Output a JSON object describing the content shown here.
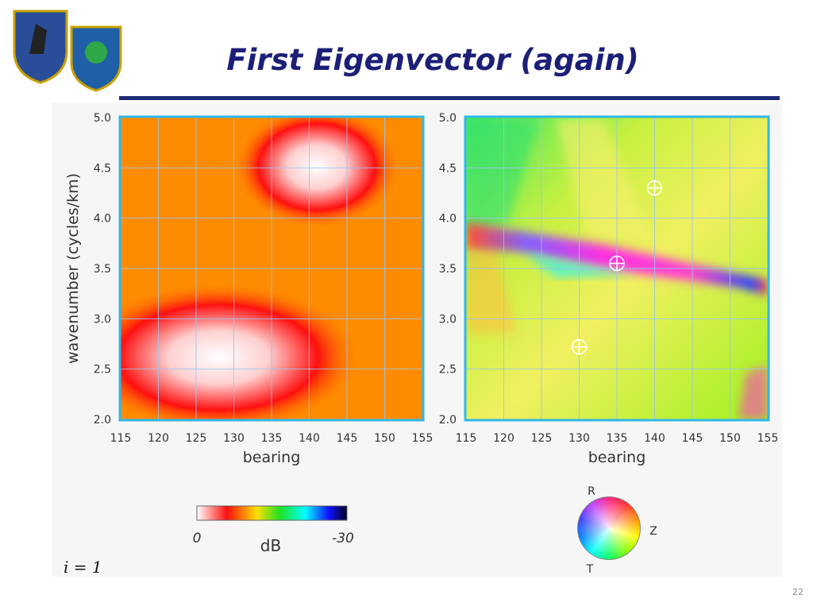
{
  "slide": {
    "title": "First Eigenvector (again)",
    "page_number": "22",
    "note": "i = 1"
  },
  "axes": {
    "xlabel": "bearing",
    "ylabel": "wavenumber (cycles/km)",
    "xlim": [
      115,
      155
    ],
    "ylim": [
      2,
      5
    ],
    "xticks": [
      115,
      120,
      125,
      130,
      135,
      140,
      145,
      150,
      155
    ],
    "yticks": [
      {
        "value": 2,
        "label": "2.0"
      },
      {
        "value": 2.5,
        "label": "2.5"
      },
      {
        "value": 3,
        "label": "3.0"
      },
      {
        "value": 3.5,
        "label": "3.5"
      },
      {
        "value": 4,
        "label": "4.0"
      },
      {
        "value": 4.5,
        "label": "4.5"
      },
      {
        "value": 5,
        "label": "5.0"
      }
    ]
  },
  "markers": [
    {
      "bearing": 140,
      "wavenumber": 4.3
    },
    {
      "bearing": 135,
      "wavenumber": 3.55
    },
    {
      "bearing": 130,
      "wavenumber": 2.72
    }
  ],
  "colorbar": {
    "min_label": 0,
    "max_label": -30,
    "unit": "dB"
  },
  "wheel": {
    "labels": [
      "R",
      "Z",
      "T"
    ]
  }
}
